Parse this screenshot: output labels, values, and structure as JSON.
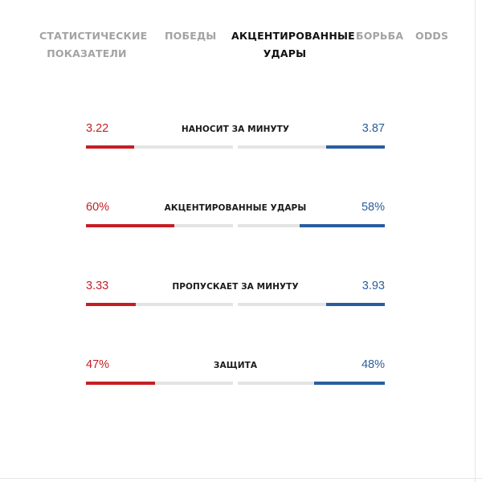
{
  "tabs": [
    {
      "lines": [
        "Статистические",
        "Показатели"
      ],
      "active": false
    },
    {
      "lines": [
        "Победы"
      ],
      "active": false
    },
    {
      "lines": [
        "Акцентированные",
        "Удары"
      ],
      "active": true
    },
    {
      "lines": [
        "Борьба"
      ],
      "active": false
    },
    {
      "lines": [
        "ODDS"
      ],
      "active": false
    }
  ],
  "stats": [
    {
      "label": "Наносит за минуту",
      "left_value": "3.22",
      "right_value": "3.87",
      "left_fill": 0.33,
      "right_fill": 0.4
    },
    {
      "label": "Акцентированные удары",
      "left_value": "60%",
      "right_value": "58%",
      "left_fill": 0.6,
      "right_fill": 0.58
    },
    {
      "label": "Пропускает за минуту",
      "left_value": "3.33",
      "right_value": "3.93",
      "left_fill": 0.34,
      "right_fill": 0.4
    },
    {
      "label": "Защита",
      "left_value": "47%",
      "right_value": "48%",
      "left_fill": 0.47,
      "right_fill": 0.48
    }
  ],
  "colors": {
    "left_accent": "#c41f25",
    "right_accent": "#2a5d9f",
    "track": "#e4e4e4",
    "tab_inactive": "#a3a3a3",
    "tab_active": "#111111"
  }
}
